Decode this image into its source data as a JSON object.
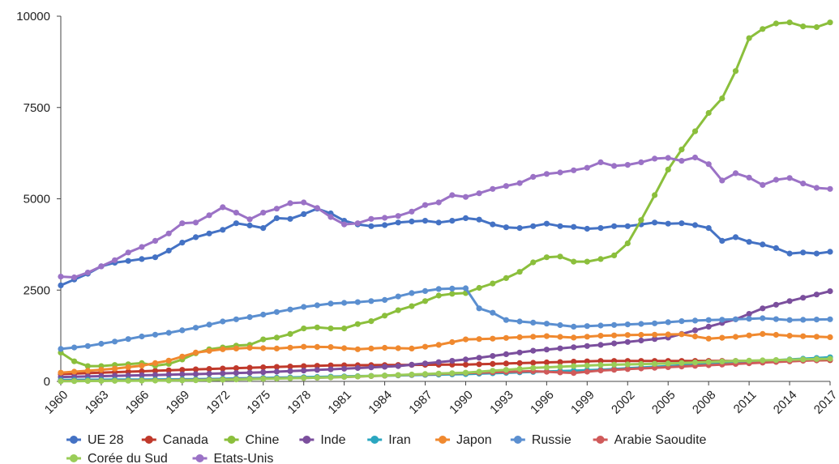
{
  "chart_data": {
    "type": "line",
    "title": "",
    "xlabel": "",
    "ylabel": "",
    "ylim": [
      0,
      10000
    ],
    "xlim": [
      1960,
      2017
    ],
    "yticks": [
      0,
      2500,
      5000,
      7500,
      10000
    ],
    "ytick_labels": [
      "0",
      "2500",
      "5000",
      "7500",
      "10000"
    ],
    "xticks": [
      1960,
      1963,
      1966,
      1969,
      1972,
      1975,
      1978,
      1981,
      1984,
      1987,
      1990,
      1993,
      1996,
      1999,
      2002,
      2005,
      2008,
      2011,
      2014,
      2017
    ],
    "grid": false,
    "legend_position": "bottom",
    "series": [
      {
        "name": "UE 28",
        "color": "#4472C4",
        "x": [
          1960,
          1962,
          1963,
          1964,
          1965,
          1966,
          1967,
          1968,
          1969,
          1970,
          1971,
          1972,
          1973,
          1974,
          1975,
          1976,
          1977,
          1978,
          1979,
          1980,
          1981,
          1982,
          1983,
          1984,
          1985,
          1986,
          1987,
          1988,
          1989,
          1990,
          1991,
          1992,
          1993,
          1994,
          1995,
          1996,
          1997,
          1998,
          1999,
          2000,
          2001,
          2002,
          2003,
          2004,
          2005,
          2006,
          2007,
          2008,
          2009,
          2010,
          2011,
          2012,
          2013,
          2014,
          2015,
          2016,
          2017
        ],
        "y": [
          2630,
          2950,
          3150,
          3250,
          3300,
          3350,
          3400,
          3580,
          3800,
          3950,
          4050,
          4150,
          4330,
          4270,
          4200,
          4470,
          4450,
          4580,
          4730,
          4600,
          4400,
          4300,
          4250,
          4280,
          4350,
          4380,
          4400,
          4350,
          4400,
          4470,
          4430,
          4300,
          4220,
          4200,
          4250,
          4320,
          4250,
          4230,
          4180,
          4200,
          4250,
          4250,
          4300,
          4350,
          4320,
          4330,
          4280,
          4200,
          3850,
          3950,
          3820,
          3750,
          3650,
          3500,
          3530,
          3500,
          3550
        ]
      },
      {
        "name": "Canada",
        "color": "#C0392B",
        "x": [
          1960,
          1970,
          1980,
          1990,
          2000,
          2010,
          2017
        ],
        "y": [
          200,
          330,
          440,
          460,
          560,
          560,
          580
        ]
      },
      {
        "name": "Chine",
        "color": "#8BBF3C",
        "x": [
          1960,
          1961,
          1962,
          1963,
          1964,
          1965,
          1966,
          1967,
          1968,
          1969,
          1970,
          1971,
          1972,
          1973,
          1974,
          1975,
          1976,
          1977,
          1978,
          1979,
          1980,
          1981,
          1982,
          1983,
          1984,
          1985,
          1986,
          1987,
          1988,
          1989,
          1990,
          1991,
          1992,
          1993,
          1994,
          1995,
          1996,
          1997,
          1998,
          1999,
          2000,
          2001,
          2002,
          2003,
          2004,
          2005,
          2006,
          2007,
          2008,
          2009,
          2010,
          2011,
          2012,
          2013,
          2014,
          2015,
          2016,
          2017
        ],
        "y": [
          790,
          550,
          420,
          420,
          450,
          470,
          500,
          430,
          480,
          600,
          770,
          880,
          930,
          980,
          1000,
          1150,
          1200,
          1300,
          1450,
          1480,
          1450,
          1450,
          1570,
          1650,
          1800,
          1950,
          2060,
          2200,
          2350,
          2400,
          2420,
          2560,
          2680,
          2830,
          3000,
          3260,
          3400,
          3420,
          3280,
          3280,
          3350,
          3450,
          3780,
          4420,
          5100,
          5800,
          6350,
          6850,
          7350,
          7750,
          8500,
          9400,
          9650,
          9800,
          9830,
          9720,
          9700,
          9830
        ]
      },
      {
        "name": "Inde",
        "color": "#7B4F9D",
        "x": [
          1960,
          1965,
          1970,
          1975,
          1980,
          1985,
          1990,
          1995,
          2000,
          2005,
          2008,
          2010,
          2012,
          2014,
          2017
        ],
        "y": [
          120,
          160,
          200,
          250,
          330,
          420,
          600,
          840,
          1000,
          1200,
          1500,
          1700,
          2000,
          2200,
          2470
        ]
      },
      {
        "name": "Iran",
        "color": "#2AA6C0",
        "x": [
          1960,
          1970,
          1980,
          1990,
          2000,
          2005,
          2010,
          2017
        ],
        "y": [
          40,
          60,
          130,
          200,
          320,
          420,
          520,
          660
        ]
      },
      {
        "name": "Japon",
        "color": "#F0892F",
        "x": [
          1960,
          1962,
          1964,
          1966,
          1968,
          1970,
          1972,
          1974,
          1976,
          1978,
          1980,
          1982,
          1984,
          1986,
          1988,
          1990,
          1992,
          1994,
          1996,
          1998,
          2000,
          2002,
          2004,
          2006,
          2008,
          2010,
          2012,
          2014,
          2017
        ],
        "y": [
          240,
          290,
          350,
          430,
          570,
          790,
          880,
          920,
          900,
          950,
          940,
          880,
          920,
          900,
          1000,
          1150,
          1170,
          1210,
          1240,
          1200,
          1250,
          1270,
          1280,
          1290,
          1170,
          1220,
          1300,
          1250,
          1210
        ]
      },
      {
        "name": "Russie",
        "color": "#5B8FD0",
        "x": [
          1960,
          1962,
          1964,
          1966,
          1968,
          1970,
          1972,
          1974,
          1976,
          1978,
          1980,
          1982,
          1984,
          1986,
          1988,
          1990,
          1991,
          1992,
          1993,
          1994,
          1996,
          1998,
          2000,
          2002,
          2004,
          2006,
          2008,
          2010,
          2012,
          2014,
          2017
        ],
        "y": [
          890,
          970,
          1090,
          1230,
          1330,
          1470,
          1640,
          1760,
          1900,
          2040,
          2130,
          2170,
          2230,
          2420,
          2530,
          2550,
          2000,
          1880,
          1680,
          1640,
          1580,
          1500,
          1530,
          1560,
          1590,
          1650,
          1680,
          1700,
          1730,
          1680,
          1700
        ]
      },
      {
        "name": "Arabie Saoudite",
        "color": "#D05A5A",
        "x": [
          1960,
          1970,
          1980,
          1990,
          1995,
          1998,
          2000,
          2005,
          2010,
          2017
        ],
        "y": [
          10,
          40,
          110,
          230,
          280,
          230,
          300,
          390,
          480,
          600
        ]
      },
      {
        "name": "Corée du Sud",
        "color": "#9ACD58",
        "x": [
          1960,
          1970,
          1980,
          1990,
          1995,
          2000,
          2005,
          2010,
          2017
        ],
        "y": [
          5,
          30,
          110,
          240,
          370,
          450,
          490,
          560,
          620
        ]
      },
      {
        "name": "Etats-Unis",
        "color": "#9B72C6",
        "x": [
          1960,
          1961,
          1962,
          1963,
          1964,
          1965,
          1966,
          1967,
          1968,
          1969,
          1970,
          1971,
          1972,
          1973,
          1974,
          1975,
          1976,
          1977,
          1978,
          1979,
          1980,
          1981,
          1982,
          1983,
          1984,
          1985,
          1986,
          1987,
          1988,
          1989,
          1990,
          1991,
          1992,
          1993,
          1994,
          1995,
          1996,
          1997,
          1998,
          1999,
          2000,
          2001,
          2002,
          2003,
          2004,
          2005,
          2006,
          2007,
          2008,
          2009,
          2010,
          2011,
          2012,
          2013,
          2014,
          2015,
          2016,
          2017
        ],
        "y": [
          2870,
          2850,
          2980,
          3150,
          3320,
          3530,
          3680,
          3850,
          4050,
          4330,
          4350,
          4550,
          4770,
          4620,
          4440,
          4620,
          4730,
          4880,
          4900,
          4750,
          4500,
          4300,
          4330,
          4450,
          4480,
          4530,
          4650,
          4830,
          4900,
          5100,
          5050,
          5150,
          5270,
          5350,
          5430,
          5600,
          5680,
          5720,
          5780,
          5850,
          6000,
          5900,
          5930,
          6000,
          6100,
          6120,
          6040,
          6130,
          5950,
          5500,
          5700,
          5580,
          5380,
          5520,
          5570,
          5420,
          5300,
          5270
        ]
      }
    ]
  }
}
